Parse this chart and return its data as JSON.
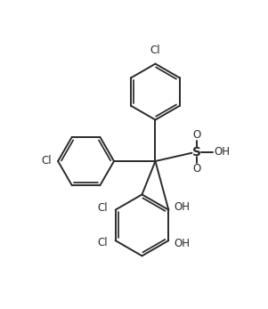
{
  "bg_color": "#ffffff",
  "line_color": "#2a2a2a",
  "line_width": 1.4,
  "figsize": [
    3.01,
    3.47
  ],
  "dpi": 100,
  "font_size": 8.5,
  "labels": {
    "Cl_top": "Cl",
    "Cl_left": "Cl",
    "S_label": "S",
    "O_top": "O",
    "O_bottom": "O",
    "OH_right": "OH",
    "OH_upper": "OH",
    "OH_lower": "OH",
    "Cl_ring1": "Cl",
    "Cl_ring2": "Cl"
  },
  "xlim": [
    0,
    10
  ],
  "ylim": [
    0,
    11.5
  ]
}
